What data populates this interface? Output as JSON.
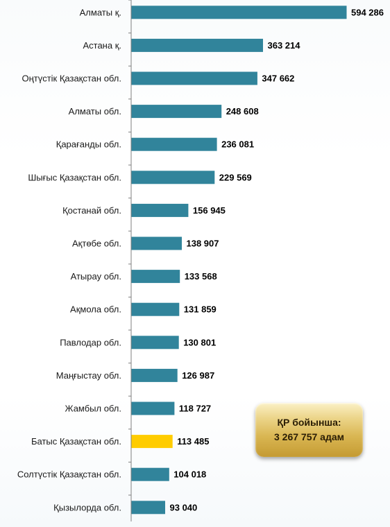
{
  "chart_data": {
    "type": "bar",
    "orientation": "horizontal",
    "categories": [
      "Алматы қ.",
      "Астана қ.",
      "Оңтүстік Қазақстан обл.",
      "Алматы обл.",
      "Қарағанды обл.",
      "Шығыс Қазақстан обл.",
      "Қостанай обл.",
      "Ақтөбе обл.",
      "Атырау обл.",
      "Ақмола обл.",
      "Павлодар обл.",
      "Маңғыстау обл.",
      "Жамбыл обл.",
      "Батыс Қазақстан обл.",
      "Солтүстік Қазақстан обл.",
      "Қызылорда обл."
    ],
    "values": [
      594286,
      363214,
      347662,
      248608,
      236081,
      229569,
      156945,
      138907,
      133568,
      131859,
      130801,
      126987,
      118727,
      113485,
      104018,
      93040
    ],
    "value_labels": [
      "594 286",
      "363 214",
      "347 662",
      "248 608",
      "236 081",
      "229 569",
      "156 945",
      "138 907",
      "133 568",
      "131 859",
      "130 801",
      "126 987",
      "118 727",
      "113 485",
      "104 018",
      "93 040"
    ],
    "highlight_category": "Батыс Қазақстан обл.",
    "bar_color": "#31849b",
    "highlight_color": "#ffcc00",
    "title": "",
    "xlabel": "",
    "ylabel": "",
    "xlim": [
      0,
      594286
    ],
    "grid": false
  },
  "total": {
    "line1": "ҚР бойынша:",
    "line2": "3 267 757 адам"
  }
}
